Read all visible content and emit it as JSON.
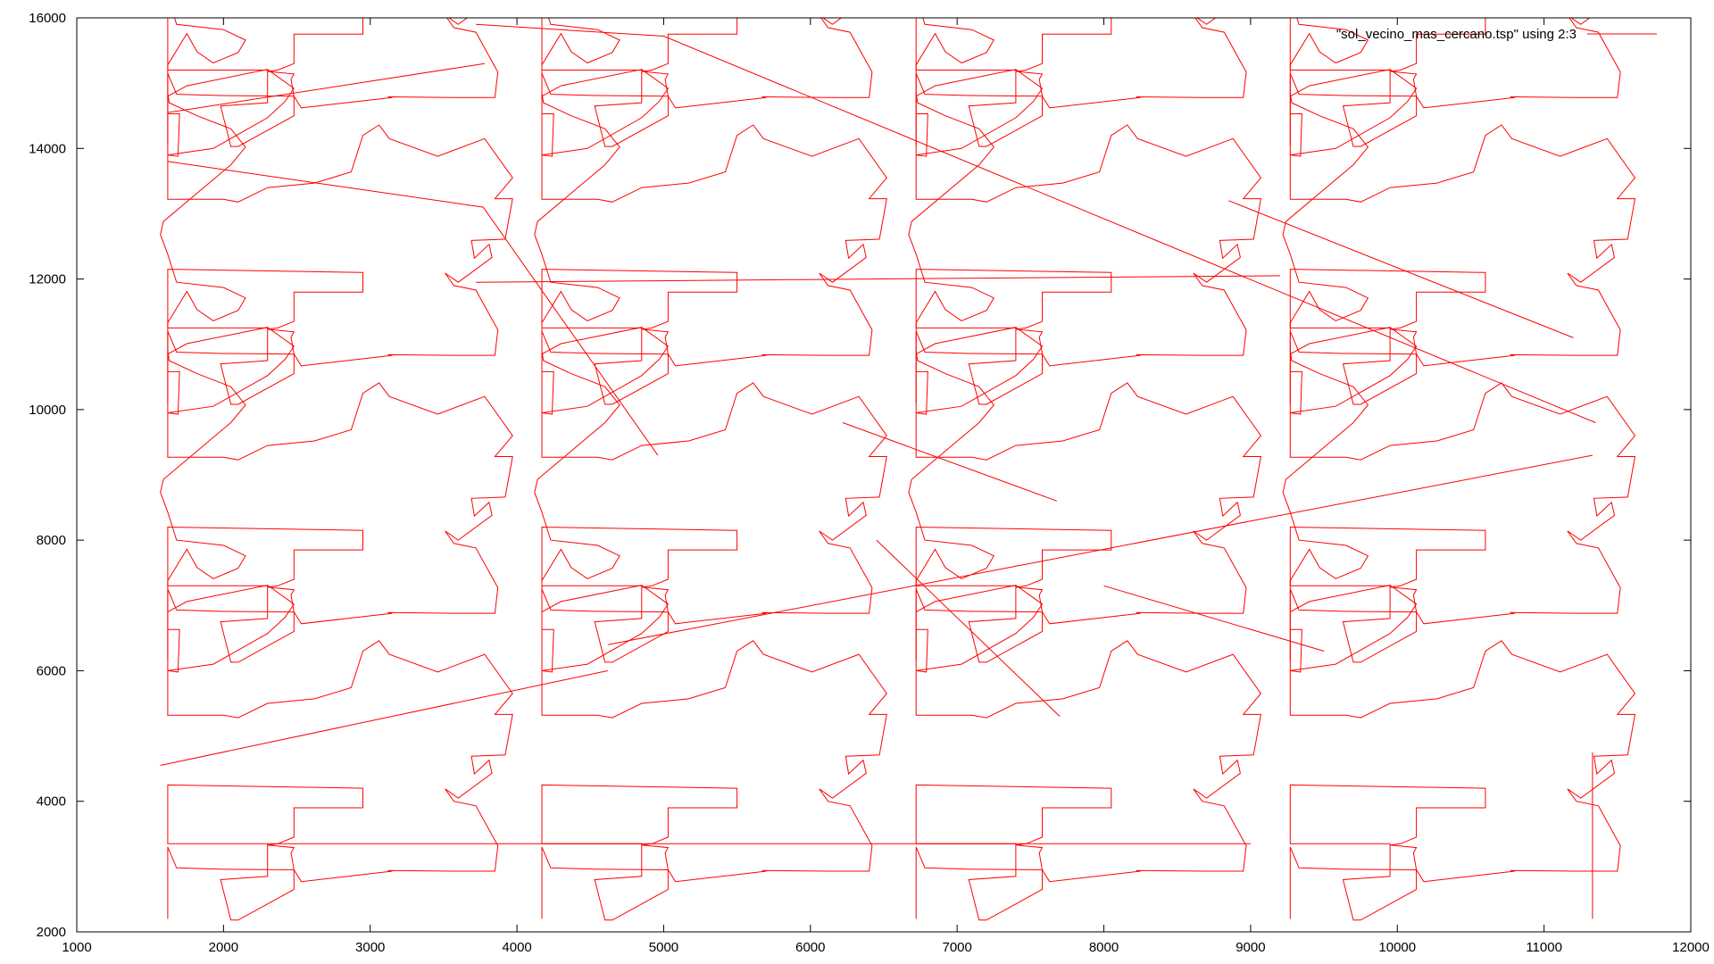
{
  "chart_data": {
    "type": "line",
    "title": "",
    "xlabel": "",
    "ylabel": "",
    "xlim": [
      1000,
      12000
    ],
    "ylim": [
      2000,
      16000
    ],
    "x_ticks": [
      1000,
      2000,
      3000,
      4000,
      5000,
      6000,
      7000,
      8000,
      9000,
      10000,
      11000,
      12000
    ],
    "y_ticks": [
      2000,
      4000,
      6000,
      8000,
      10000,
      12000,
      14000,
      16000
    ],
    "grid": false,
    "legend_position": "top-right",
    "series_color": "#ff0000",
    "series": [
      {
        "name": "\"sol_vecino_mas_cercano.tsp\" using 2:3",
        "x": [
          1620,
          1620,
          1620,
          1680,
          1980,
          2480,
          2480,
          2100,
          2050,
          1980,
          2300,
          2300,
          1620,
          1620,
          1620,
          2950,
          2950,
          2480,
          2480,
          2370,
          2300,
          2480,
          2460,
          2480,
          2530,
          3150,
          3120,
          3570,
          3850,
          3870,
          3720,
          3570,
          3510,
          3600,
          3830,
          3810,
          3710,
          3690,
          3920,
          3970,
          3850,
          3970,
          3780,
          3460,
          3130,
          3060,
          2950,
          2870,
          2620,
          2300,
          2100,
          2000,
          1620,
          1620,
          1620,
          1750,
          2300,
          2480,
          2420,
          2300,
          1930,
          1620,
          1690,
          1700,
          1620,
          1620,
          1750,
          1820,
          1930,
          2100,
          2150,
          2000,
          1680,
          1620,
          1570,
          1590,
          2050,
          2150,
          2050,
          1820,
          1630,
          1620
        ],
        "y": [
          2200,
          3150,
          3300,
          2980,
          2960,
          2950,
          2650,
          2180,
          2180,
          2800,
          2850,
          3350,
          3350,
          3900,
          4250,
          4200,
          3900,
          3900,
          3450,
          3350,
          3330,
          3290,
          3210,
          2950,
          2770,
          2930,
          2940,
          2930,
          2930,
          3320,
          3930,
          4000,
          4190,
          4050,
          4430,
          4630,
          4420,
          4690,
          4710,
          5330,
          5330,
          5650,
          6250,
          5980,
          6250,
          6460,
          6300,
          5740,
          5570,
          5500,
          5280,
          5320,
          5320,
          5500,
          6900,
          7060,
          7310,
          7020,
          6820,
          6570,
          6100,
          6000,
          5980,
          6630,
          6630,
          7380,
          7860,
          7580,
          7410,
          7570,
          7760,
          7920,
          8000,
          8430,
          8730,
          8930,
          9800,
          10070,
          10350,
          10550,
          10750,
          10900
        ]
      }
    ]
  }
}
